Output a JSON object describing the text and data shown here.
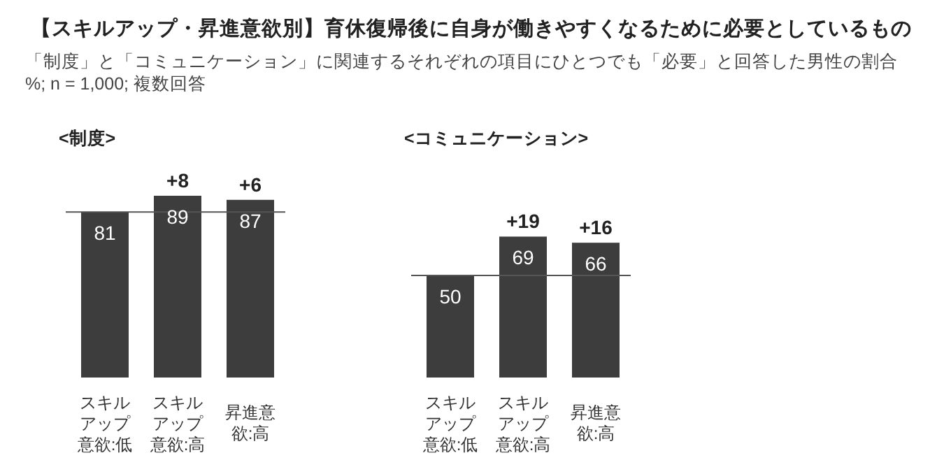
{
  "chart_data": [
    {
      "type": "other",
      "title": "【スキルアップ・昇進意欲別】育休復帰後に自身が働きやすくなるために必要としているもの",
      "subtitle": "「制度」と「コミュニケーション」に関連するそれぞれの項目にひとつでも「必要」と回答した男性の割合",
      "annotations": [
        "%; n = 1,000; 複数回答"
      ]
    },
    {
      "type": "bar",
      "title": "<制度>",
      "categories": [
        "スキルアップ意欲:低",
        "スキルアップ意欲:高",
        "昇進意欲:高"
      ],
      "values": [
        81,
        89,
        87
      ],
      "color": "#3d3d3d",
      "data_labels": true,
      "ref_lines": [
        {
          "axis": "y",
          "value": 81,
          "color": "#555555"
        }
      ],
      "annotations": [
        {
          "text": "+8",
          "x": "スキルアップ意欲:高",
          "y": 89
        },
        {
          "text": "+6",
          "x": "昇進意欲:高",
          "y": 87
        }
      ]
    },
    {
      "type": "bar",
      "title": "<コミュニケーション>",
      "categories": [
        "スキルアップ意欲:低",
        "スキルアップ意欲:高",
        "昇進意欲:高"
      ],
      "values": [
        50,
        69,
        66
      ],
      "color": "#3d3d3d",
      "data_labels": true,
      "ref_lines": [
        {
          "axis": "y",
          "value": 50,
          "color": "#555555"
        }
      ],
      "annotations": [
        {
          "text": "+19",
          "x": "スキルアップ意欲:高",
          "y": 69
        },
        {
          "text": "+16",
          "x": "昇進意欲:高",
          "y": 66
        }
      ]
    }
  ]
}
